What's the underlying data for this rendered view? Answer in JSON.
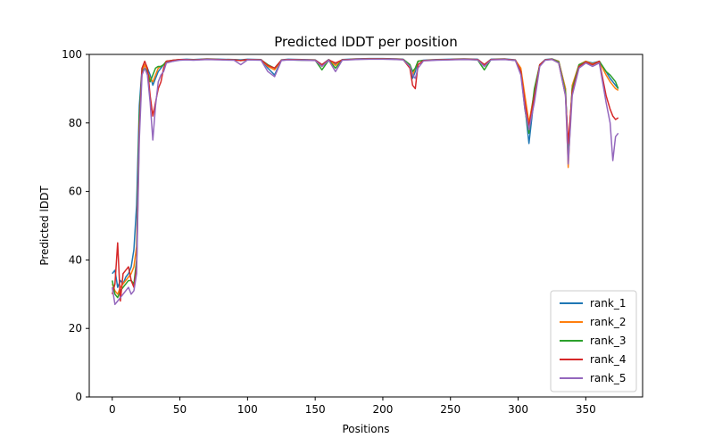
{
  "chart_data": {
    "type": "line",
    "title": "Predicted lDDT per position",
    "xlabel": "Positions",
    "ylabel": "Predicted lDDT",
    "xlim": [
      -17,
      392
    ],
    "ylim": [
      0,
      100
    ],
    "xticks": [
      0,
      50,
      100,
      150,
      200,
      250,
      300,
      350
    ],
    "yticks": [
      0,
      20,
      40,
      60,
      80,
      100
    ],
    "grid": false,
    "legend_position": "lower-right",
    "x": [
      0,
      2,
      4,
      6,
      8,
      10,
      12,
      14,
      16,
      18,
      20,
      22,
      24,
      26,
      28,
      30,
      32,
      34,
      36,
      38,
      40,
      45,
      50,
      55,
      60,
      65,
      70,
      80,
      90,
      95,
      100,
      110,
      115,
      120,
      125,
      130,
      140,
      150,
      155,
      160,
      165,
      170,
      180,
      190,
      200,
      210,
      215,
      220,
      222,
      224,
      226,
      230,
      240,
      250,
      260,
      270,
      275,
      280,
      290,
      298,
      302,
      305,
      308,
      312,
      316,
      320,
      325,
      330,
      335,
      337,
      340,
      345,
      350,
      355,
      360,
      365,
      368,
      370,
      372,
      374
    ],
    "series": [
      {
        "name": "rank_1",
        "color": "#1f77b4",
        "values": [
          36,
          37,
          32,
          34,
          33,
          35,
          36,
          38,
          43,
          56,
          85,
          96,
          97,
          96,
          94,
          91,
          93,
          95,
          96,
          97,
          98,
          98,
          98.5,
          98.6,
          98.5,
          98.6,
          98.7,
          98.6,
          98.5,
          98.4,
          98.6,
          98.5,
          96,
          94,
          98.4,
          98.6,
          98.5,
          98.4,
          97,
          98.5,
          97,
          98.5,
          98.7,
          98.8,
          98.8,
          98.7,
          98.6,
          97,
          93,
          95,
          98,
          98.3,
          98.5,
          98.6,
          98.7,
          98.6,
          97,
          98.6,
          98.7,
          98.4,
          95,
          85,
          74,
          88,
          97,
          98.5,
          98.7,
          98,
          90,
          70,
          90,
          97,
          98,
          97.5,
          98,
          95,
          93,
          92,
          91,
          90
        ]
      },
      {
        "name": "rank_2",
        "color": "#ff7f0e",
        "values": [
          33,
          31,
          30,
          32,
          33,
          34,
          35,
          36,
          38,
          44,
          80,
          95,
          97,
          95,
          93,
          92,
          94,
          96,
          96.5,
          97,
          98,
          98.2,
          98.4,
          98.5,
          98.4,
          98.5,
          98.6,
          98.5,
          98.4,
          98.2,
          98.5,
          98.4,
          96.5,
          95.5,
          98.3,
          98.5,
          98.4,
          98.3,
          96.5,
          98.4,
          96.8,
          98.4,
          98.6,
          98.7,
          98.7,
          98.6,
          98.5,
          97,
          94,
          96,
          98,
          98.2,
          98.4,
          98.5,
          98.6,
          98.5,
          97,
          98.5,
          98.6,
          98.3,
          96,
          88,
          80,
          89,
          97,
          98.4,
          98.6,
          98,
          90,
          67,
          91,
          97,
          98,
          97.2,
          98,
          94,
          92,
          91,
          90,
          89.5
        ]
      },
      {
        "name": "rank_3",
        "color": "#2ca02c",
        "values": [
          34,
          30,
          29,
          31,
          32,
          33,
          34,
          34,
          33,
          40,
          82,
          95,
          96,
          95,
          92,
          94,
          96,
          96.5,
          96.5,
          97,
          98,
          98.3,
          98.5,
          98.5,
          98.4,
          98.5,
          98.6,
          98.5,
          98.4,
          98.2,
          98.4,
          98.4,
          97,
          96,
          98.3,
          98.4,
          98.3,
          98.3,
          95.5,
          98.3,
          96,
          98.4,
          98.6,
          98.7,
          98.7,
          98.6,
          98.5,
          97,
          95,
          96,
          98,
          98.2,
          98.4,
          98.5,
          98.6,
          98.4,
          95.5,
          98.5,
          98.6,
          98.2,
          95,
          84,
          77,
          90,
          97,
          98.4,
          98.6,
          97.8,
          89,
          72,
          90,
          97,
          97.8,
          97,
          98,
          95,
          94,
          93,
          92,
          90
        ]
      },
      {
        "name": "rank_4",
        "color": "#d62728",
        "values": [
          30,
          33,
          45,
          28,
          36,
          37,
          38,
          34,
          32,
          38,
          78,
          96,
          98,
          96,
          88,
          82,
          86,
          90,
          92,
          96,
          98,
          98.3,
          98.5,
          98.5,
          98.4,
          98.5,
          98.6,
          98.5,
          98.4,
          98.2,
          98.5,
          98.4,
          96.8,
          96,
          98.3,
          98.5,
          98.4,
          98.3,
          97,
          98.4,
          97.5,
          98.4,
          98.6,
          98.7,
          98.7,
          98.6,
          98.5,
          96,
          91,
          90,
          97,
          98.2,
          98.4,
          98.5,
          98.6,
          98.5,
          97,
          98.5,
          98.6,
          98.3,
          95,
          86,
          79,
          88,
          97,
          98.4,
          98.6,
          97.5,
          88,
          74,
          89,
          96.5,
          97.8,
          97,
          98,
          88,
          84,
          82,
          81,
          81.5
        ]
      },
      {
        "name": "rank_5",
        "color": "#9467bd",
        "values": [
          32,
          27,
          28,
          29,
          30,
          31,
          32,
          30,
          31,
          36,
          75,
          94,
          96,
          94,
          86,
          75,
          85,
          92,
          94,
          95,
          97.5,
          98,
          98.3,
          98.4,
          98.3,
          98.4,
          98.5,
          98.4,
          98.3,
          97,
          98.4,
          98.3,
          95,
          93.5,
          98.2,
          98.4,
          98.3,
          98.2,
          96.5,
          98.3,
          95,
          98.3,
          98.5,
          98.6,
          98.6,
          98.5,
          98.4,
          96.5,
          94,
          93,
          96,
          98.1,
          98.3,
          98.4,
          98.5,
          98.4,
          96.5,
          98.4,
          98.5,
          98.2,
          94,
          84,
          78,
          86,
          96.5,
          98.3,
          98.5,
          97.5,
          88,
          68,
          88,
          96,
          97.5,
          96.5,
          97.5,
          86,
          80,
          69,
          76,
          77
        ]
      }
    ]
  }
}
